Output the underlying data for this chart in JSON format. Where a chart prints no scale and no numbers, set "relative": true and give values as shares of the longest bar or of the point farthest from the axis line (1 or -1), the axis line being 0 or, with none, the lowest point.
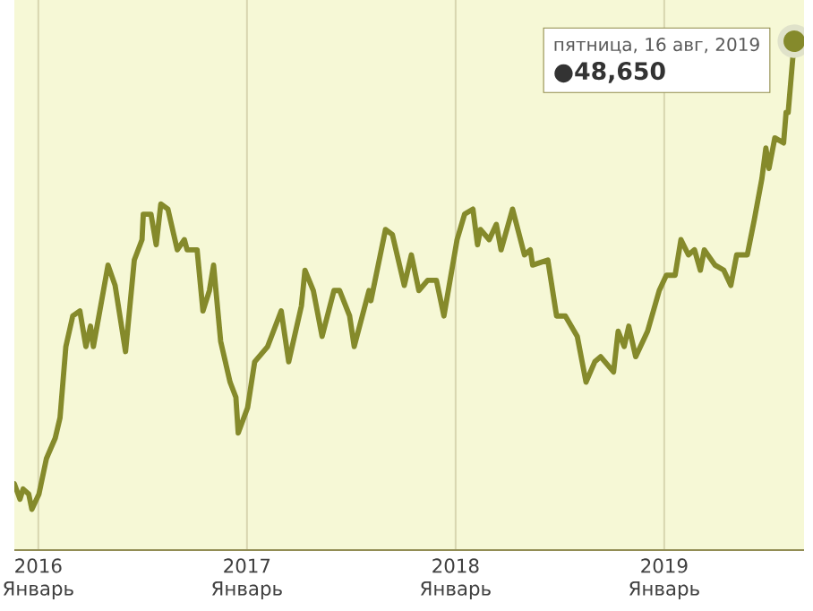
{
  "chart_data": {
    "type": "line",
    "relative": true,
    "color": "#858a2b",
    "grid": true,
    "xlim": [
      2015.885,
      2019.67
    ],
    "xticks": [
      {
        "value": 2016,
        "label": "2016 Январь"
      },
      {
        "value": 2017,
        "label": "2017 Январь"
      },
      {
        "value": 2018,
        "label": "2018 Январь"
      },
      {
        "value": 2019,
        "label": "2019 Январь"
      }
    ],
    "x": [
      2015.885,
      2015.912,
      2015.927,
      2015.954,
      2015.969,
      2016.003,
      2016.039,
      2016.081,
      2016.104,
      2016.132,
      2016.165,
      2016.199,
      2016.228,
      2016.25,
      2016.264,
      2016.334,
      2016.368,
      2016.418,
      2016.46,
      2016.497,
      2016.503,
      2016.54,
      2016.565,
      2016.587,
      2016.621,
      2016.666,
      2016.7,
      2016.713,
      2016.761,
      2016.789,
      2016.82,
      2016.84,
      2016.874,
      2016.919,
      2016.947,
      2016.958,
      2017.003,
      2017.037,
      2017.099,
      2017.164,
      2017.2,
      2017.261,
      2017.278,
      2017.318,
      2017.36,
      2017.417,
      2017.444,
      2017.492,
      2017.514,
      2017.585,
      2017.594,
      2017.664,
      2017.697,
      2017.754,
      2017.788,
      2017.824,
      2017.866,
      2017.908,
      2017.944,
      2018.007,
      2018.043,
      2018.083,
      2018.105,
      2018.119,
      2018.161,
      2018.195,
      2018.218,
      2018.273,
      2018.33,
      2018.358,
      2018.369,
      2018.442,
      2018.484,
      2018.526,
      2018.583,
      2018.625,
      2018.667,
      2018.695,
      2018.757,
      2018.779,
      2018.808,
      2018.83,
      2018.863,
      2018.92,
      2018.976,
      2019.01,
      2019.052,
      2019.08,
      2019.116,
      2019.145,
      2019.173,
      2019.192,
      2019.243,
      2019.285,
      2019.319,
      2019.347,
      2019.398,
      2019.432,
      2019.468,
      2019.487,
      2019.502,
      2019.53,
      2019.572,
      2019.584,
      2019.594,
      2019.623
    ],
    "values": [
      0.13,
      0.1,
      0.12,
      0.11,
      0.08,
      0.11,
      0.18,
      0.22,
      0.26,
      0.4,
      0.46,
      0.47,
      0.4,
      0.44,
      0.4,
      0.56,
      0.52,
      0.39,
      0.57,
      0.61,
      0.66,
      0.66,
      0.6,
      0.68,
      0.67,
      0.59,
      0.61,
      0.59,
      0.59,
      0.47,
      0.51,
      0.56,
      0.41,
      0.33,
      0.3,
      0.23,
      0.28,
      0.37,
      0.4,
      0.47,
      0.37,
      0.48,
      0.55,
      0.51,
      0.42,
      0.51,
      0.51,
      0.46,
      0.4,
      0.51,
      0.49,
      0.63,
      0.62,
      0.52,
      0.58,
      0.51,
      0.53,
      0.53,
      0.46,
      0.61,
      0.66,
      0.67,
      0.6,
      0.63,
      0.61,
      0.64,
      0.59,
      0.67,
      0.58,
      0.59,
      0.56,
      0.57,
      0.46,
      0.46,
      0.42,
      0.33,
      0.37,
      0.38,
      0.35,
      0.43,
      0.4,
      0.44,
      0.38,
      0.43,
      0.51,
      0.54,
      0.54,
      0.61,
      0.58,
      0.59,
      0.55,
      0.59,
      0.56,
      0.55,
      0.52,
      0.58,
      0.58,
      0.65,
      0.73,
      0.79,
      0.75,
      0.81,
      0.8,
      0.86,
      0.86,
      1
    ],
    "annotations": [
      {
        "text": "пятница, 16 авг, 2019",
        "x": 2019.623,
        "y": 1
      },
      "●48,650"
    ]
  }
}
